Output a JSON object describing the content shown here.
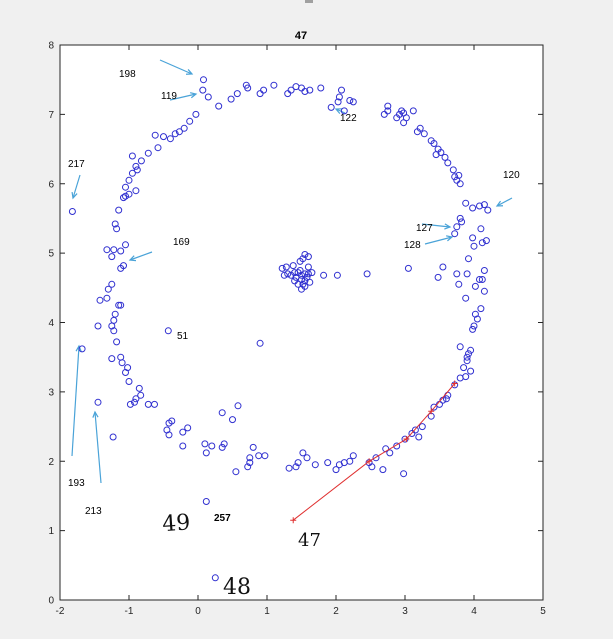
{
  "chart_data": {
    "type": "scatter",
    "title": "47",
    "xlabel": "",
    "ylabel": "",
    "xlim": [
      -2,
      5
    ],
    "ylim": [
      0,
      8
    ],
    "xticks": [
      "-2",
      "-1",
      "0",
      "1",
      "2",
      "3",
      "4",
      "5"
    ],
    "yticks": [
      "0",
      "1",
      "2",
      "3",
      "4",
      "5",
      "6",
      "7",
      "8"
    ],
    "grid": false,
    "marker_color": "#3030d0",
    "path_color": "#e03030",
    "series": [
      {
        "marker": "circle",
        "points": [
          [
            0.08,
            7.5
          ],
          [
            0.07,
            7.35
          ],
          [
            0.15,
            7.25
          ],
          [
            0.3,
            7.12
          ],
          [
            0.48,
            7.22
          ],
          [
            0.57,
            7.3
          ],
          [
            0.7,
            7.42
          ],
          [
            0.72,
            7.38
          ],
          [
            0.9,
            7.3
          ],
          [
            0.95,
            7.35
          ],
          [
            1.1,
            7.42
          ],
          [
            1.3,
            7.3
          ],
          [
            1.35,
            7.35
          ],
          [
            1.42,
            7.4
          ],
          [
            1.5,
            7.38
          ],
          [
            1.55,
            7.33
          ],
          [
            1.62,
            7.35
          ],
          [
            1.78,
            7.38
          ],
          [
            1.93,
            7.1
          ],
          [
            2.03,
            7.18
          ],
          [
            2.05,
            7.25
          ],
          [
            2.08,
            7.35
          ],
          [
            2.2,
            7.2
          ],
          [
            2.25,
            7.18
          ],
          [
            2.12,
            7.05
          ],
          [
            -0.03,
            7.0
          ],
          [
            -0.12,
            6.9
          ],
          [
            -0.2,
            6.8
          ],
          [
            -0.27,
            6.75
          ],
          [
            -0.33,
            6.72
          ],
          [
            -0.4,
            6.65
          ],
          [
            -0.5,
            6.68
          ],
          [
            -0.62,
            6.7
          ],
          [
            -0.58,
            6.52
          ],
          [
            -0.72,
            6.44
          ],
          [
            -0.82,
            6.33
          ],
          [
            -0.95,
            6.4
          ],
          [
            -0.9,
            6.25
          ],
          [
            -0.88,
            6.2
          ],
          [
            -0.95,
            6.15
          ],
          [
            -1.0,
            6.05
          ],
          [
            -1.05,
            5.95
          ],
          [
            -0.9,
            5.9
          ],
          [
            -1.0,
            5.85
          ],
          [
            -1.05,
            5.82
          ],
          [
            -1.08,
            5.8
          ],
          [
            -1.15,
            5.62
          ],
          [
            -1.2,
            5.42
          ],
          [
            -1.18,
            5.35
          ],
          [
            -1.05,
            5.12
          ],
          [
            -1.12,
            5.03
          ],
          [
            -1.22,
            5.05
          ],
          [
            -1.32,
            5.05
          ],
          [
            -1.25,
            4.95
          ],
          [
            -1.08,
            4.82
          ],
          [
            -1.12,
            4.78
          ],
          [
            -1.25,
            4.55
          ],
          [
            -1.3,
            4.48
          ],
          [
            -1.32,
            4.35
          ],
          [
            -1.42,
            4.32
          ],
          [
            -1.15,
            4.25
          ],
          [
            -1.12,
            4.25
          ],
          [
            -1.2,
            4.12
          ],
          [
            -1.22,
            4.03
          ],
          [
            -1.25,
            3.95
          ],
          [
            -1.45,
            3.95
          ],
          [
            -1.22,
            3.88
          ],
          [
            -1.18,
            3.72
          ],
          [
            -1.12,
            3.5
          ],
          [
            -1.25,
            3.48
          ],
          [
            -1.1,
            3.42
          ],
          [
            -1.02,
            3.35
          ],
          [
            -1.05,
            3.28
          ],
          [
            -1.0,
            3.15
          ],
          [
            -0.85,
            3.05
          ],
          [
            -0.83,
            2.95
          ],
          [
            -0.9,
            2.9
          ],
          [
            -0.92,
            2.85
          ],
          [
            -0.98,
            2.82
          ],
          [
            -0.72,
            2.82
          ],
          [
            -0.63,
            2.82
          ],
          [
            -0.38,
            2.58
          ],
          [
            -0.42,
            2.55
          ],
          [
            -0.45,
            2.45
          ],
          [
            -0.22,
            2.42
          ],
          [
            -0.15,
            2.48
          ],
          [
            -0.42,
            2.38
          ],
          [
            -0.22,
            2.22
          ],
          [
            0.1,
            2.25
          ],
          [
            0.2,
            2.22
          ],
          [
            0.35,
            2.2
          ],
          [
            0.38,
            2.25
          ],
          [
            0.12,
            2.12
          ],
          [
            0.35,
            2.7
          ],
          [
            0.5,
            2.6
          ],
          [
            0.58,
            2.8
          ],
          [
            0.55,
            1.85
          ],
          [
            0.72,
            1.92
          ],
          [
            0.75,
            1.98
          ],
          [
            0.75,
            2.05
          ],
          [
            0.8,
            2.2
          ],
          [
            0.88,
            2.08
          ],
          [
            0.97,
            2.08
          ],
          [
            1.32,
            1.9
          ],
          [
            1.42,
            1.92
          ],
          [
            1.45,
            1.98
          ],
          [
            1.52,
            2.12
          ],
          [
            1.58,
            2.05
          ],
          [
            1.7,
            1.95
          ],
          [
            1.88,
            1.98
          ],
          [
            2.0,
            1.88
          ],
          [
            2.05,
            1.95
          ],
          [
            2.12,
            1.98
          ],
          [
            2.2,
            2.0
          ],
          [
            2.25,
            2.08
          ],
          [
            2.48,
            1.98
          ],
          [
            2.52,
            1.92
          ],
          [
            2.58,
            2.05
          ],
          [
            2.68,
            1.88
          ],
          [
            2.72,
            2.18
          ],
          [
            2.78,
            2.12
          ],
          [
            2.88,
            2.22
          ],
          [
            2.98,
            1.82
          ],
          [
            3.0,
            2.32
          ],
          [
            3.1,
            2.4
          ],
          [
            3.15,
            2.45
          ],
          [
            3.2,
            2.35
          ],
          [
            3.25,
            2.5
          ],
          [
            3.38,
            2.65
          ],
          [
            3.42,
            2.78
          ],
          [
            3.5,
            2.82
          ],
          [
            3.55,
            2.88
          ],
          [
            3.6,
            2.9
          ],
          [
            3.62,
            2.95
          ],
          [
            3.72,
            3.1
          ],
          [
            3.8,
            3.2
          ],
          [
            3.88,
            3.22
          ],
          [
            3.85,
            3.35
          ],
          [
            3.9,
            3.45
          ],
          [
            3.92,
            3.55
          ],
          [
            3.95,
            3.6
          ],
          [
            3.9,
            3.5
          ],
          [
            3.95,
            3.3
          ],
          [
            3.8,
            3.65
          ],
          [
            3.98,
            3.9
          ],
          [
            4.0,
            3.95
          ],
          [
            4.05,
            4.05
          ],
          [
            4.02,
            4.12
          ],
          [
            4.1,
            4.2
          ],
          [
            4.15,
            4.45
          ],
          [
            4.08,
            4.62
          ],
          [
            4.15,
            4.75
          ],
          [
            3.9,
            4.7
          ],
          [
            4.12,
            4.62
          ],
          [
            4.02,
            4.52
          ],
          [
            3.92,
            4.92
          ],
          [
            4.12,
            5.15
          ],
          [
            4.18,
            5.18
          ],
          [
            3.88,
            4.35
          ],
          [
            3.78,
            4.55
          ],
          [
            3.75,
            4.7
          ],
          [
            3.55,
            4.8
          ],
          [
            3.48,
            4.65
          ],
          [
            3.72,
            5.28
          ],
          [
            3.75,
            5.38
          ],
          [
            3.82,
            5.45
          ],
          [
            3.8,
            5.5
          ],
          [
            3.88,
            5.72
          ],
          [
            3.98,
            5.65
          ],
          [
            4.08,
            5.68
          ],
          [
            4.15,
            5.7
          ],
          [
            4.2,
            5.62
          ],
          [
            4.1,
            5.35
          ],
          [
            3.98,
            5.22
          ],
          [
            4.0,
            5.1
          ],
          [
            3.8,
            6.0
          ],
          [
            3.75,
            6.05
          ],
          [
            3.72,
            6.1
          ],
          [
            3.78,
            6.12
          ],
          [
            3.7,
            6.2
          ],
          [
            3.62,
            6.3
          ],
          [
            3.58,
            6.38
          ],
          [
            3.52,
            6.45
          ],
          [
            3.48,
            6.5
          ],
          [
            3.42,
            6.58
          ],
          [
            3.38,
            6.62
          ],
          [
            3.28,
            6.72
          ],
          [
            3.22,
            6.8
          ],
          [
            3.18,
            6.75
          ],
          [
            2.98,
            6.88
          ],
          [
            2.88,
            6.95
          ],
          [
            2.92,
            7.0
          ],
          [
            2.95,
            7.05
          ],
          [
            2.98,
            7.02
          ],
          [
            2.75,
            7.05
          ],
          [
            2.7,
            7.0
          ],
          [
            2.75,
            7.12
          ],
          [
            3.02,
            6.95
          ],
          [
            3.45,
            6.42
          ],
          [
            3.12,
            7.05
          ],
          [
            1.28,
            4.8
          ],
          [
            1.3,
            4.7
          ],
          [
            1.25,
            4.68
          ],
          [
            1.35,
            4.68
          ],
          [
            1.4,
            4.72
          ],
          [
            1.42,
            4.65
          ],
          [
            1.45,
            4.72
          ],
          [
            1.48,
            4.75
          ],
          [
            1.5,
            4.68
          ],
          [
            1.5,
            4.62
          ],
          [
            1.52,
            4.55
          ],
          [
            1.55,
            4.6
          ],
          [
            1.55,
            4.7
          ],
          [
            1.58,
            4.65
          ],
          [
            1.6,
            4.7
          ],
          [
            1.62,
            4.58
          ],
          [
            1.65,
            4.72
          ],
          [
            1.48,
            4.88
          ],
          [
            1.52,
            4.92
          ],
          [
            1.55,
            4.98
          ],
          [
            1.6,
            4.95
          ],
          [
            1.5,
            4.48
          ],
          [
            1.55,
            4.52
          ],
          [
            1.4,
            4.6
          ],
          [
            1.45,
            4.55
          ],
          [
            1.6,
            4.8
          ],
          [
            1.38,
            4.82
          ],
          [
            1.82,
            4.68
          ],
          [
            2.02,
            4.68
          ],
          [
            2.45,
            4.7
          ],
          [
            3.05,
            4.78
          ],
          [
            1.22,
            4.78
          ],
          [
            -1.82,
            5.6
          ],
          [
            -1.68,
            3.62
          ],
          [
            -1.45,
            2.85
          ],
          [
            -1.23,
            2.35
          ],
          [
            -0.43,
            3.88
          ],
          [
            0.9,
            3.7
          ],
          [
            0.12,
            1.42
          ],
          [
            0.25,
            0.32
          ]
        ]
      },
      {
        "name": "47",
        "marker": "plus",
        "line": true,
        "points": [
          [
            1.38,
            1.15
          ],
          [
            2.48,
            2.0
          ],
          [
            3.02,
            2.32
          ],
          [
            3.38,
            2.72
          ],
          [
            3.72,
            3.12
          ]
        ]
      }
    ],
    "annotations": [
      {
        "text": "198"
      },
      {
        "text": "119"
      },
      {
        "text": "122"
      },
      {
        "text": "217"
      },
      {
        "text": "120"
      },
      {
        "text": "127"
      },
      {
        "text": "128"
      },
      {
        "text": "169"
      },
      {
        "text": "51"
      },
      {
        "text": "193"
      },
      {
        "text": "213"
      },
      {
        "text": "257"
      }
    ],
    "handwritten": [
      {
        "text": "49"
      },
      {
        "text": "47"
      },
      {
        "text": "48"
      }
    ]
  }
}
